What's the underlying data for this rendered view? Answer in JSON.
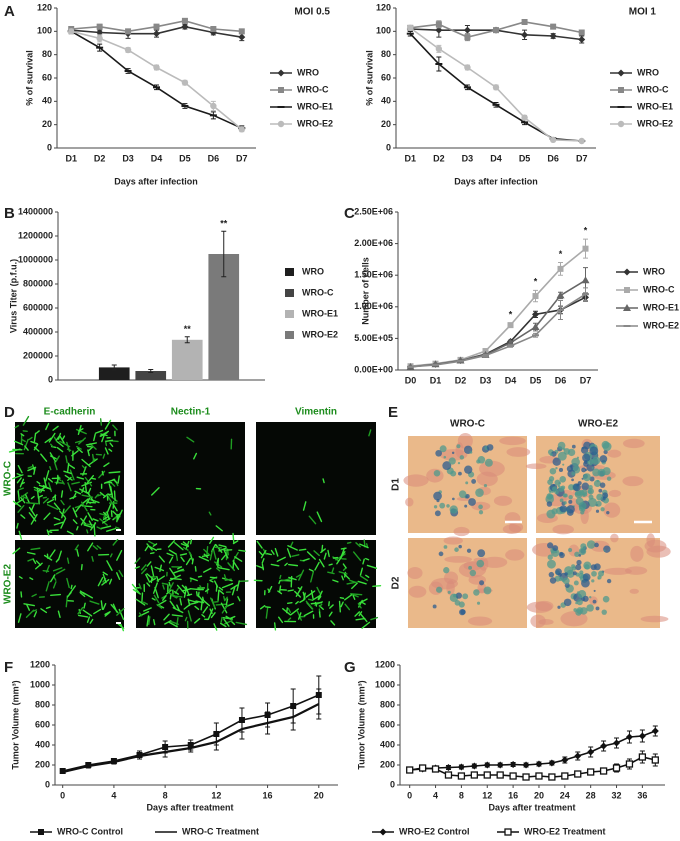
{
  "panel_labels": [
    "A",
    "B",
    "C",
    "D",
    "E",
    "F",
    "G"
  ],
  "chart_data": [
    {
      "type": "line",
      "title": "MOI 0.5",
      "x_label": "Days after infection",
      "y_label": "% of survival",
      "categories": [
        "D1",
        "D2",
        "D3",
        "D4",
        "D5",
        "D6",
        "D7"
      ],
      "ylim": [
        0,
        120
      ],
      "yticks": [
        0,
        20,
        40,
        60,
        80,
        100,
        120
      ],
      "legend": "right",
      "series": [
        {
          "name": "WRO",
          "color": "#333333",
          "marker": "diamond",
          "values": [
            101,
            99,
            98,
            98,
            104,
            99,
            95
          ],
          "errors": [
            3,
            2,
            4,
            3,
            2,
            2,
            3
          ]
        },
        {
          "name": "WRO-C",
          "color": "#888888",
          "marker": "square",
          "values": [
            102,
            104,
            100,
            104,
            109,
            102,
            100
          ],
          "errors": [
            2,
            2,
            2,
            2,
            2,
            2,
            2
          ]
        },
        {
          "name": "WRO-E1",
          "color": "#1a1a1a",
          "marker": "dash",
          "values": [
            100,
            86,
            66,
            52,
            36,
            28,
            17
          ],
          "errors": [
            2,
            3,
            2,
            2,
            2,
            3,
            2
          ]
        },
        {
          "name": "WRO-E2",
          "color": "#bbbbbb",
          "marker": "circle",
          "values": [
            100,
            94,
            84,
            69,
            56,
            36,
            16
          ],
          "errors": [
            2,
            3,
            2,
            2,
            2,
            4,
            2
          ]
        }
      ]
    },
    {
      "type": "line",
      "title": "MOI 1",
      "x_label": "Days after infection",
      "y_label": "% of survival",
      "categories": [
        "D1",
        "D2",
        "D3",
        "D4",
        "D5",
        "D6",
        "D7"
      ],
      "ylim": [
        0,
        120
      ],
      "yticks": [
        0,
        20,
        40,
        60,
        80,
        100,
        120
      ],
      "legend": "right",
      "series": [
        {
          "name": "WRO",
          "color": "#333333",
          "marker": "diamond",
          "values": [
            102,
            101,
            101,
            101,
            97,
            96,
            93
          ],
          "errors": [
            2,
            6,
            4,
            2,
            4,
            2,
            3
          ]
        },
        {
          "name": "WRO-C",
          "color": "#888888",
          "marker": "square",
          "values": [
            103,
            106,
            95,
            101,
            108,
            104,
            99
          ],
          "errors": [
            2,
            3,
            3,
            2,
            2,
            2,
            2
          ]
        },
        {
          "name": "WRO-E1",
          "color": "#1a1a1a",
          "marker": "dash",
          "values": [
            98,
            72,
            52,
            37,
            22,
            8,
            6
          ],
          "errors": [
            2,
            6,
            2,
            2,
            2,
            1,
            1
          ]
        },
        {
          "name": "WRO-E2",
          "color": "#bbbbbb",
          "marker": "circle",
          "values": [
            103,
            85,
            69,
            52,
            26,
            7,
            6
          ],
          "errors": [
            2,
            3,
            2,
            2,
            2,
            1,
            1
          ]
        }
      ]
    },
    {
      "type": "bar",
      "y_label": "Virus Titer (p.f.u.)",
      "categories": [
        "WRO",
        "WRO-C",
        "WRO-E1",
        "WRO-E2"
      ],
      "colors": [
        "#1e1e1e",
        "#444444",
        "#b3b3b3",
        "#7a7a7a"
      ],
      "values": [
        105000,
        75000,
        335000,
        1050000
      ],
      "errors": [
        20000,
        12000,
        25000,
        190000
      ],
      "ylim": [
        0,
        1400000
      ],
      "yticks": [
        0,
        200000,
        400000,
        600000,
        800000,
        1000000,
        1200000,
        1400000
      ],
      "legend": "right",
      "annotations": [
        {
          "category": "WRO-E1",
          "text": "**"
        },
        {
          "category": "WRO-E2",
          "text": "**"
        }
      ]
    },
    {
      "type": "line",
      "y_label": "Number of cells",
      "categories": [
        "D0",
        "D1",
        "D2",
        "D3",
        "D4",
        "D5",
        "D6",
        "D7"
      ],
      "ylim": [
        0,
        2500000
      ],
      "yticks": [
        {
          "value": 0,
          "label": "0.00E+00"
        },
        {
          "value": 500000,
          "label": "5.00E+05"
        },
        {
          "value": 1000000,
          "label": "1.00E+06"
        },
        {
          "value": 1500000,
          "label": "1.50E+06"
        },
        {
          "value": 2000000,
          "label": "2.00E+06"
        },
        {
          "value": 2500000,
          "label": "2.50E+06"
        }
      ],
      "legend": "right",
      "series": [
        {
          "name": "WRO",
          "color": "#333333",
          "marker": "diamond",
          "values": [
            50000,
            90000,
            150000,
            250000,
            450000,
            880000,
            950000,
            1150000
          ],
          "errors": [
            10000,
            10000,
            10000,
            20000,
            20000,
            50000,
            60000,
            60000
          ]
        },
        {
          "name": "WRO-C",
          "color": "#aaaaaa",
          "marker": "square",
          "values": [
            60000,
            100000,
            160000,
            300000,
            710000,
            1170000,
            1600000,
            1920000
          ],
          "errors": [
            10000,
            10000,
            20000,
            20000,
            30000,
            90000,
            100000,
            150000
          ]
        },
        {
          "name": "WRO-E1",
          "color": "#666666",
          "marker": "triangle",
          "values": [
            50000,
            90000,
            150000,
            240000,
            430000,
            680000,
            1180000,
            1420000
          ],
          "errors": [
            10000,
            10000,
            10000,
            20000,
            30000,
            60000,
            50000,
            200000
          ]
        },
        {
          "name": "WRO-E2",
          "color": "#888888",
          "marker": "dash",
          "values": [
            50000,
            80000,
            140000,
            230000,
            380000,
            550000,
            950000,
            1200000
          ],
          "errors": [
            10000,
            10000,
            10000,
            20000,
            20000,
            30000,
            150000,
            100000
          ]
        }
      ],
      "annotations": [
        {
          "x": "D4",
          "text": "*"
        },
        {
          "x": "D5",
          "text": "*"
        },
        {
          "x": "D6",
          "text": "*"
        },
        {
          "x": "D7",
          "text": "*"
        }
      ]
    },
    {
      "type": "line",
      "x_label": "Days after treatment",
      "y_label": "Tumor Volume (mm³)",
      "x": [
        0,
        2,
        4,
        6,
        8,
        10,
        12,
        14,
        16,
        18,
        20
      ],
      "xlim": [
        -0.6,
        21.5
      ],
      "xticks": [
        0,
        4,
        8,
        12,
        16,
        20
      ],
      "ylim": [
        0,
        1200
      ],
      "yticks": [
        0,
        200,
        400,
        600,
        800,
        1000,
        1200
      ],
      "legend": "bottom",
      "series": [
        {
          "name": "WRO-C Control",
          "color": "#111111",
          "marker": "square",
          "values": [
            140,
            200,
            240,
            300,
            380,
            400,
            510,
            650,
            700,
            790,
            900
          ],
          "errors": [
            15,
            20,
            20,
            40,
            60,
            50,
            110,
            120,
            120,
            170,
            190
          ]
        },
        {
          "name": "WRO-C Treatment",
          "color": "#111111",
          "marker": "none",
          "values": [
            130,
            190,
            230,
            290,
            330,
            370,
            430,
            560,
            620,
            680,
            810
          ],
          "errors": [
            15,
            20,
            20,
            30,
            50,
            40,
            80,
            100,
            110,
            130,
            150
          ]
        }
      ]
    },
    {
      "type": "line",
      "x_label": "Days after treatment",
      "y_label": "Tumor Volume (mm³)",
      "x": [
        0,
        2,
        4,
        6,
        8,
        10,
        12,
        14,
        16,
        18,
        20,
        22,
        24,
        26,
        28,
        30,
        32,
        34,
        36,
        38
      ],
      "xlim": [
        -1.5,
        39.5
      ],
      "xticks": [
        0,
        4,
        8,
        12,
        16,
        20,
        24,
        28,
        32,
        36
      ],
      "ylim": [
        0,
        1200
      ],
      "yticks": [
        0,
        200,
        400,
        600,
        800,
        1000,
        1200
      ],
      "legend": "bottom",
      "series": [
        {
          "name": "WRO-E2 Control",
          "color": "#111111",
          "marker": "diamond",
          "values": [
            150,
            160,
            170,
            175,
            180,
            190,
            200,
            200,
            205,
            200,
            210,
            220,
            250,
            290,
            330,
            390,
            420,
            480,
            490,
            540
          ],
          "errors": [
            20,
            20,
            20,
            20,
            20,
            20,
            20,
            20,
            20,
            20,
            20,
            20,
            30,
            40,
            50,
            50,
            50,
            60,
            60,
            50
          ]
        },
        {
          "name": "WRO-E2 Treatment",
          "color": "#111111",
          "marker": "open-square",
          "values": [
            150,
            170,
            160,
            100,
            90,
            100,
            100,
            100,
            90,
            80,
            90,
            80,
            90,
            110,
            130,
            140,
            170,
            210,
            280,
            250
          ],
          "errors": [
            20,
            20,
            20,
            30,
            30,
            20,
            20,
            20,
            20,
            20,
            20,
            20,
            20,
            20,
            30,
            30,
            40,
            50,
            60,
            60
          ]
        }
      ]
    }
  ],
  "images": {
    "D": {
      "columns": [
        "E-cadherin",
        "Nectin-1",
        "Vimentin"
      ],
      "rows": [
        "WRO-C",
        "WRO-E2"
      ]
    },
    "E": {
      "columns": [
        "WRO-C",
        "WRO-E2"
      ],
      "rows": [
        "D1",
        "D2"
      ]
    }
  }
}
